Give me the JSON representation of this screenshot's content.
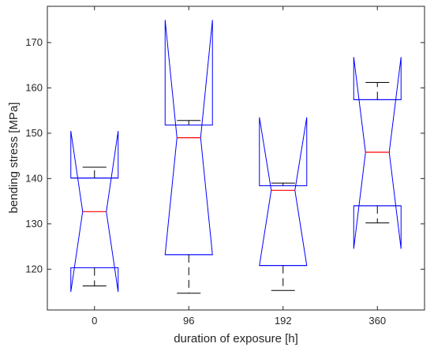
{
  "chart_data": {
    "type": "boxplot",
    "notched": true,
    "xlabel": "duration of exposure [h]",
    "ylabel": "bending stress [MPa]",
    "ylim": [
      111,
      178
    ],
    "yticks": [
      120,
      130,
      140,
      150,
      160,
      170
    ],
    "categories": [
      "0",
      "96",
      "192",
      "360"
    ],
    "boxes": [
      {
        "category": "0",
        "whisker_low": 116.3,
        "q1": 120.3,
        "notch_low": 115.0,
        "median": 132.7,
        "notch_high": 150.5,
        "q3": 140.1,
        "whisker_high": 142.5
      },
      {
        "category": "96",
        "whisker_low": 114.7,
        "q1": 123.2,
        "notch_low": 123.2,
        "median": 149.0,
        "notch_high": 175.0,
        "q3": 151.8,
        "whisker_high": 152.8
      },
      {
        "category": "192",
        "whisker_low": 115.3,
        "q1": 120.8,
        "notch_low": 120.8,
        "median": 137.4,
        "notch_high": 153.5,
        "q3": 138.4,
        "whisker_high": 139.0
      },
      {
        "category": "360",
        "whisker_low": 130.2,
        "q1": 134.0,
        "notch_low": 124.5,
        "median": 145.8,
        "notch_high": 166.8,
        "q3": 157.4,
        "whisker_high": 161.2
      }
    ],
    "colors": {
      "box": "#0000ff",
      "median": "#ff0000",
      "whisker": "#000000",
      "axis": "#262626"
    }
  }
}
